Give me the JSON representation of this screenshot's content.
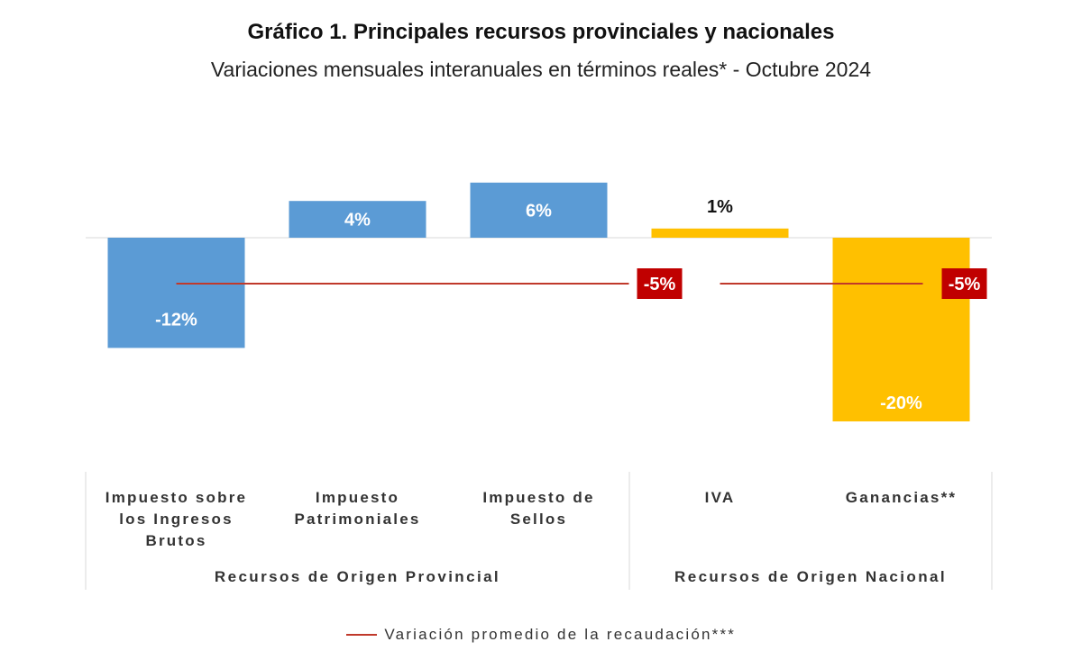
{
  "title": "Gráfico 1. Principales recursos provinciales y nacionales",
  "subtitle": "Variaciones mensuales interanuales en términos reales* - Octubre 2024",
  "legend": {
    "label": "Variación promedio de la recaudación***",
    "color": "#c0392b"
  },
  "colors": {
    "provincial": "#5b9bd5",
    "nacional": "#ffc000",
    "average": "#c00000",
    "axis": "#d9d9d9"
  },
  "chart_data": {
    "type": "bar",
    "categories": [
      [
        "Impuesto sobre",
        "los Ingresos",
        "Brutos"
      ],
      [
        "Impuesto",
        "Patrimoniales"
      ],
      [
        "Impuesto de",
        "Sellos"
      ],
      [
        "IVA"
      ],
      [
        "Ganancias**"
      ]
    ],
    "values": [
      -12,
      4,
      6,
      1,
      -20
    ],
    "data_labels": [
      "-12%",
      "4%",
      "6%",
      "1%",
      "-20%"
    ],
    "bar_groups": [
      "provincial",
      "provincial",
      "provincial",
      "nacional",
      "nacional"
    ],
    "groups": [
      {
        "label": "Recursos de Origen Provincial",
        "categories": [
          0,
          1,
          2
        ],
        "average": -5,
        "average_label": "-5%"
      },
      {
        "label": "Recursos de Origen Nacional",
        "categories": [
          3,
          4
        ],
        "average": -5,
        "average_label": "-5%"
      }
    ],
    "ylim": [
      -20,
      6
    ],
    "grid": false,
    "legend_position": "bottom"
  }
}
